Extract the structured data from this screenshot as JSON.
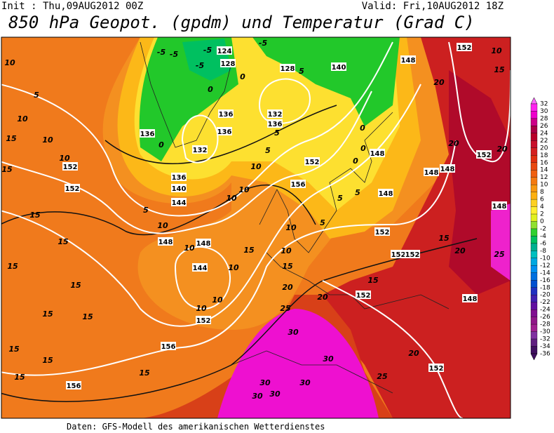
{
  "header": {
    "init": "Init : Thu,09AUG2012 00Z",
    "valid": "Valid: Fri,10AUG2012 18Z",
    "title": "850 hPa Geopot. (gpdm) und Temperatur (Grad C)"
  },
  "footer": "Daten: GFS-Modell des amerikanischen Wetterdienstes",
  "legend": {
    "levels": [
      32,
      30,
      28,
      26,
      24,
      22,
      20,
      18,
      16,
      14,
      12,
      10,
      8,
      6,
      4,
      2,
      0,
      -2,
      -4,
      -6,
      -8,
      -10,
      -12,
      -14,
      -16,
      -18,
      -20,
      -22,
      -24,
      -26,
      -28,
      -30,
      -32,
      -34,
      -36
    ],
    "colors": [
      "#ff66ff",
      "#ff22ee",
      "#ee00cc",
      "#cc0088",
      "#aa0044",
      "#b8002a",
      "#c8102a",
      "#d42020",
      "#e03010",
      "#e84810",
      "#f06010",
      "#f47a10",
      "#f89810",
      "#fcb010",
      "#fdd020",
      "#ffee30",
      "#e0f020",
      "#90e030",
      "#30d030",
      "#00c060",
      "#00b090",
      "#00c0c0",
      "#00a8e0",
      "#0090f0",
      "#0070e0",
      "#0050d0",
      "#2030c0",
      "#4020b0",
      "#6010a0",
      "#801090",
      "#901888",
      "#a02090",
      "#8030a0",
      "#602080",
      "#401060"
    ]
  },
  "geopotential_labels": [
    124,
    128,
    128,
    140,
    148,
    152,
    132,
    136,
    136,
    136,
    136,
    132,
    136,
    140,
    144,
    152,
    156,
    148,
    148,
    148,
    148,
    152,
    148,
    152,
    152,
    152,
    148,
    144,
    152,
    156,
    156,
    152,
    152,
    148,
    152,
    148,
    152
  ],
  "temperature_labels": [
    10,
    5,
    10,
    15,
    10,
    10,
    15,
    15,
    15,
    15,
    15,
    15,
    15,
    15,
    15,
    15,
    15,
    10,
    5,
    10,
    10,
    10,
    10,
    10,
    10,
    10,
    5,
    5,
    0,
    5,
    0,
    0,
    0,
    5,
    5,
    5,
    10,
    15,
    10,
    15,
    20,
    25,
    20,
    15,
    30,
    30,
    30,
    30,
    30,
    30,
    25,
    20,
    10,
    15,
    20,
    20,
    20,
    15,
    20,
    25,
    -5,
    -5,
    -5,
    -5,
    -5,
    0,
    0
  ]
}
